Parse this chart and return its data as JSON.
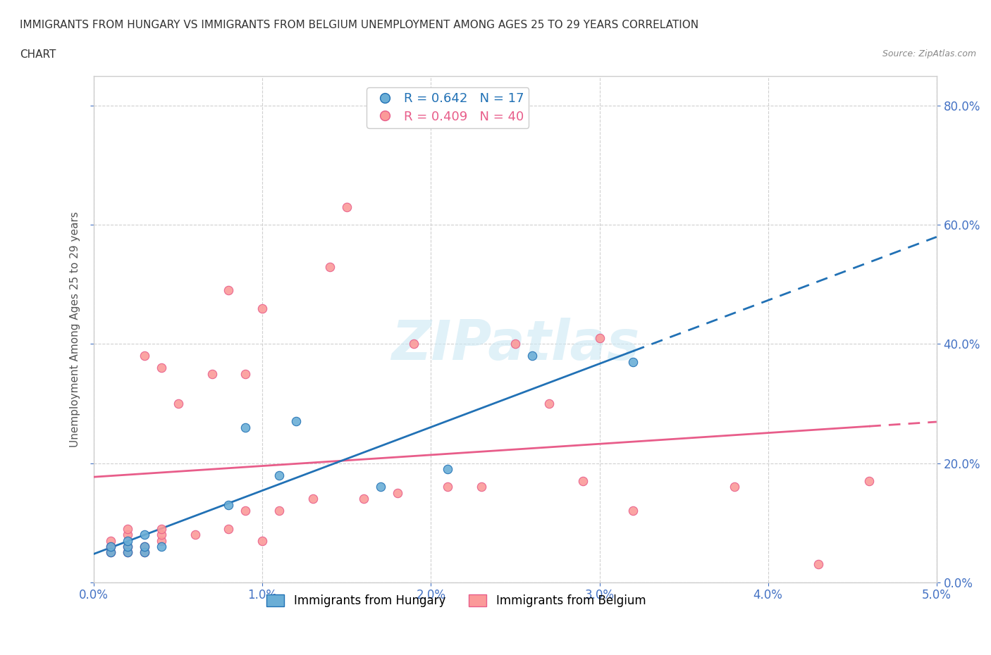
{
  "title_line1": "IMMIGRANTS FROM HUNGARY VS IMMIGRANTS FROM BELGIUM UNEMPLOYMENT AMONG AGES 25 TO 29 YEARS CORRELATION",
  "title_line2": "CHART",
  "source": "Source: ZipAtlas.com",
  "xlabel": "",
  "ylabel": "Unemployment Among Ages 25 to 29 years",
  "legend_hungary": "Immigrants from Hungary",
  "legend_belgium": "Immigrants from Belgium",
  "R_hungary": 0.642,
  "N_hungary": 17,
  "R_belgium": 0.409,
  "N_belgium": 40,
  "hungary_color": "#6baed6",
  "belgium_color": "#fb9a99",
  "hungary_line_color": "#2171b5",
  "belgium_line_color": "#e85d8a",
  "xlim": [
    0.0,
    0.05
  ],
  "ylim": [
    0.0,
    0.85
  ],
  "xticks": [
    0.0,
    0.01,
    0.02,
    0.03,
    0.04,
    0.05
  ],
  "yticks": [
    0.0,
    0.2,
    0.4,
    0.6,
    0.8
  ],
  "hungary_x": [
    0.001,
    0.001,
    0.002,
    0.002,
    0.002,
    0.003,
    0.003,
    0.003,
    0.004,
    0.008,
    0.009,
    0.011,
    0.012,
    0.017,
    0.021,
    0.026,
    0.032
  ],
  "hungary_y": [
    0.05,
    0.06,
    0.05,
    0.06,
    0.07,
    0.05,
    0.06,
    0.08,
    0.06,
    0.13,
    0.26,
    0.18,
    0.27,
    0.16,
    0.19,
    0.38,
    0.37
  ],
  "belgium_x": [
    0.001,
    0.001,
    0.001,
    0.002,
    0.002,
    0.002,
    0.002,
    0.003,
    0.003,
    0.003,
    0.004,
    0.004,
    0.004,
    0.004,
    0.005,
    0.006,
    0.007,
    0.008,
    0.008,
    0.009,
    0.009,
    0.01,
    0.01,
    0.011,
    0.013,
    0.014,
    0.015,
    0.016,
    0.018,
    0.019,
    0.021,
    0.023,
    0.025,
    0.027,
    0.029,
    0.03,
    0.032,
    0.038,
    0.043,
    0.046
  ],
  "belgium_y": [
    0.05,
    0.06,
    0.07,
    0.05,
    0.06,
    0.08,
    0.09,
    0.05,
    0.06,
    0.38,
    0.07,
    0.08,
    0.09,
    0.36,
    0.3,
    0.08,
    0.35,
    0.49,
    0.09,
    0.12,
    0.35,
    0.07,
    0.46,
    0.12,
    0.14,
    0.53,
    0.63,
    0.14,
    0.15,
    0.4,
    0.16,
    0.16,
    0.4,
    0.3,
    0.17,
    0.41,
    0.12,
    0.16,
    0.03,
    0.17
  ],
  "watermark": "ZIPatlas",
  "background_color": "#ffffff",
  "grid_color": "#d0d0d0"
}
